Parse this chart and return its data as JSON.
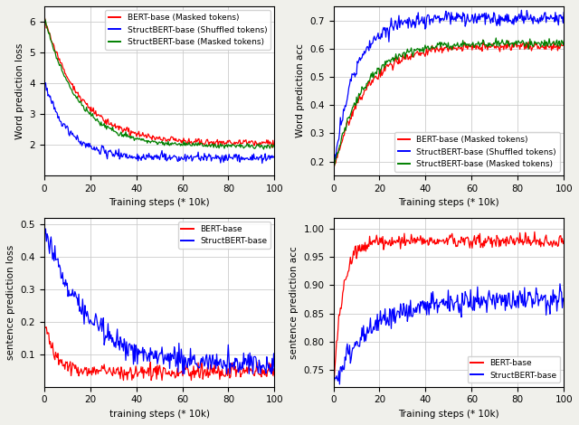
{
  "top_left": {
    "xlabel": "Training steps (* 10k)",
    "ylabel": "Word prediction loss",
    "ylim": [
      1.0,
      6.5
    ],
    "xlim": [
      0,
      100
    ],
    "yticks": [
      2,
      3,
      4,
      5,
      6
    ],
    "xticks": [
      0,
      20,
      40,
      60,
      80,
      100
    ],
    "legend_loc": "upper right",
    "lines": [
      {
        "label": "BERT-base (Masked tokens)",
        "color": "red"
      },
      {
        "label": "StructBERT-base (Shuffled tokens)",
        "color": "blue"
      },
      {
        "label": "StructBERT-base (Masked tokens)",
        "color": "green"
      }
    ]
  },
  "top_right": {
    "xlabel": "Training steps (* 10k)",
    "ylabel": "Word prediction acc",
    "ylim": [
      0.15,
      0.75
    ],
    "xlim": [
      0,
      100
    ],
    "yticks": [
      0.2,
      0.3,
      0.4,
      0.5,
      0.6,
      0.7
    ],
    "xticks": [
      0,
      20,
      40,
      60,
      80,
      100
    ],
    "legend_loc": "lower right",
    "lines": [
      {
        "label": "BERT-base (Masked tokens)",
        "color": "red"
      },
      {
        "label": "StructBERT-base (Shuffled tokens)",
        "color": "blue"
      },
      {
        "label": "StructBERT-base (Masked tokens)",
        "color": "green"
      }
    ]
  },
  "bottom_left": {
    "xlabel": "training steps (* 10k)",
    "ylabel": "sentence prediction loss",
    "ylim": [
      0.0,
      0.52
    ],
    "xlim": [
      0,
      100
    ],
    "yticks": [
      0.1,
      0.2,
      0.3,
      0.4,
      0.5
    ],
    "xticks": [
      0,
      20,
      40,
      60,
      80,
      100
    ],
    "legend_loc": "upper right",
    "lines": [
      {
        "label": "BERT-base",
        "color": "red"
      },
      {
        "label": "StructBERT-base",
        "color": "blue"
      }
    ]
  },
  "bottom_right": {
    "xlabel": "Training steps (* 10k)",
    "ylabel": "sentence prediction acc",
    "ylim": [
      0.72,
      1.02
    ],
    "xlim": [
      0,
      100
    ],
    "yticks": [
      0.75,
      0.8,
      0.85,
      0.9,
      0.95,
      1.0
    ],
    "xticks": [
      0,
      20,
      40,
      60,
      80,
      100
    ],
    "legend_loc": "lower right",
    "lines": [
      {
        "label": "BERT-base",
        "color": "red"
      },
      {
        "label": "StructBERT-base",
        "color": "blue"
      }
    ]
  },
  "panel_bg": "#ffffff",
  "fig_bg": "#f0f0eb",
  "grid_color": "#cccccc",
  "font_size": 7.5,
  "legend_fontsize": 6.5,
  "linewidth": 0.9
}
